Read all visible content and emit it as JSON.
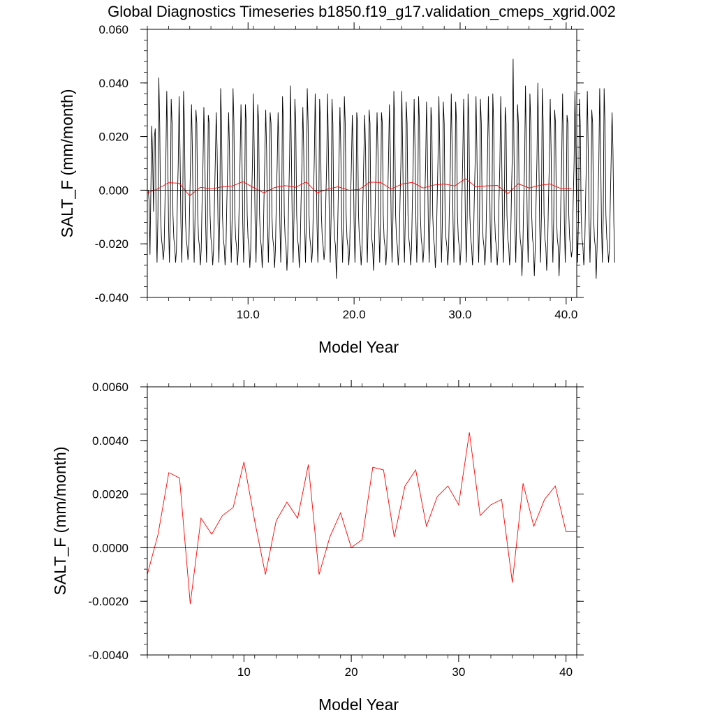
{
  "figure_title": "Global Diagnostics Timeseries b1850.f19_g17.validation_cmeps_xgrid.002",
  "chart_data": [
    {
      "type": "line",
      "title": "",
      "xlabel": "Model Year",
      "ylabel": "SALT_F (mm/month)",
      "xlim": [
        0.5,
        41.0
      ],
      "ylim": [
        -0.04,
        0.06
      ],
      "xticks": [
        10,
        20,
        30,
        40
      ],
      "xtick_labels": [
        "10.0",
        "20.0",
        "30.0",
        "40.0"
      ],
      "yticks": [
        -0.04,
        -0.02,
        0.0,
        0.02,
        0.04,
        0.06
      ],
      "ytick_labels": [
        "-0.040",
        "-0.020",
        "0.000",
        "0.020",
        "0.040",
        "0.060"
      ],
      "zero_line": true,
      "grid": false,
      "series": [
        {
          "color": "#000000",
          "x_start": 0.5,
          "x_step": 0.08333,
          "values": [
            0.0,
            0.0,
            -0.004,
            -0.024,
            0.0,
            0.024,
            0.012,
            -0.008,
            0.02,
            0.023,
            -0.012,
            -0.027,
            -0.01,
            0.042,
            0.025,
            -0.009,
            -0.018,
            -0.021,
            -0.026,
            -0.022,
            -0.004,
            0.012,
            0.037,
            0.015,
            -0.012,
            -0.027,
            -0.01,
            0.034,
            0.025,
            -0.009,
            -0.018,
            -0.021,
            -0.027,
            -0.022,
            -0.004,
            0.01,
            0.035,
            0.015,
            -0.012,
            -0.027,
            -0.01,
            0.037,
            0.025,
            -0.009,
            -0.018,
            -0.021,
            -0.026,
            -0.022,
            -0.004,
            0.012,
            0.032,
            0.015,
            -0.012,
            -0.027,
            -0.01,
            0.03,
            0.025,
            -0.009,
            -0.018,
            -0.021,
            -0.028,
            -0.022,
            -0.004,
            0.01,
            0.031,
            0.015,
            -0.012,
            -0.027,
            -0.01,
            0.028,
            0.025,
            -0.009,
            -0.018,
            -0.021,
            -0.028,
            -0.022,
            -0.004,
            0.012,
            0.029,
            0.015,
            -0.012,
            -0.027,
            -0.01,
            0.038,
            0.025,
            -0.009,
            -0.018,
            -0.021,
            -0.028,
            -0.022,
            -0.004,
            0.01,
            0.029,
            0.015,
            -0.012,
            -0.027,
            -0.01,
            0.038,
            0.025,
            -0.009,
            -0.018,
            -0.021,
            -0.028,
            -0.022,
            -0.004,
            0.012,
            0.032,
            0.015,
            -0.012,
            -0.027,
            -0.01,
            0.032,
            0.025,
            -0.009,
            -0.018,
            -0.021,
            -0.029,
            -0.022,
            -0.004,
            0.01,
            0.036,
            0.015,
            -0.012,
            -0.027,
            -0.01,
            0.032,
            0.025,
            -0.009,
            -0.018,
            -0.021,
            -0.029,
            -0.022,
            -0.004,
            0.012,
            0.03,
            0.015,
            -0.012,
            -0.027,
            -0.01,
            0.029,
            0.025,
            -0.009,
            -0.018,
            -0.021,
            -0.029,
            -0.022,
            -0.004,
            0.01,
            0.029,
            0.015,
            -0.012,
            -0.027,
            -0.01,
            0.035,
            0.025,
            -0.009,
            -0.018,
            -0.021,
            -0.03,
            -0.022,
            -0.004,
            0.012,
            0.039,
            0.015,
            -0.012,
            -0.027,
            -0.01,
            0.034,
            0.025,
            -0.009,
            -0.018,
            -0.021,
            -0.029,
            -0.022,
            -0.004,
            0.01,
            0.031,
            0.015,
            -0.012,
            -0.027,
            -0.01,
            0.038,
            0.025,
            -0.009,
            -0.018,
            -0.021,
            -0.027,
            -0.022,
            -0.004,
            0.012,
            0.036,
            0.015,
            -0.012,
            -0.027,
            -0.01,
            0.034,
            0.025,
            -0.009,
            -0.018,
            -0.021,
            -0.026,
            -0.022,
            -0.004,
            0.01,
            0.036,
            0.015,
            -0.012,
            -0.027,
            -0.01,
            0.034,
            0.025,
            -0.009,
            -0.018,
            -0.021,
            -0.033,
            -0.022,
            -0.004,
            0.012,
            0.031,
            0.015,
            -0.012,
            -0.027,
            -0.01,
            0.035,
            0.025,
            -0.009,
            -0.018,
            -0.021,
            -0.028,
            -0.022,
            -0.004,
            0.01,
            0.028,
            0.015,
            -0.012,
            -0.027,
            -0.01,
            0.029,
            0.025,
            -0.009,
            -0.018,
            -0.021,
            -0.028,
            -0.022,
            -0.004,
            0.012,
            0.028,
            0.015,
            -0.012,
            -0.027,
            -0.01,
            0.03,
            0.025,
            -0.009,
            -0.018,
            -0.021,
            -0.03,
            -0.022,
            -0.004,
            0.01,
            0.029,
            0.015,
            -0.012,
            -0.027,
            -0.01,
            0.029,
            0.025,
            -0.009,
            -0.018,
            -0.021,
            -0.028,
            -0.022,
            -0.004,
            0.012,
            0.032,
            0.015,
            -0.012,
            -0.027,
            -0.01,
            0.037,
            0.025,
            -0.009,
            -0.018,
            -0.021,
            -0.028,
            -0.022,
            -0.004,
            0.01,
            0.037,
            0.015,
            -0.012,
            -0.027,
            -0.01,
            0.033,
            0.025,
            -0.009,
            -0.018,
            -0.021,
            -0.028,
            -0.022,
            -0.004,
            0.012,
            0.034,
            0.015,
            -0.012,
            -0.027,
            -0.01,
            0.035,
            0.025,
            -0.009,
            -0.018,
            -0.021,
            -0.027,
            -0.022,
            -0.004,
            0.01,
            0.033,
            0.015,
            -0.012,
            -0.027,
            -0.01,
            0.031,
            0.025,
            -0.009,
            -0.018,
            -0.021,
            -0.029,
            -0.022,
            -0.004,
            0.012,
            0.035,
            0.015,
            -0.012,
            -0.027,
            -0.01,
            0.033,
            0.025,
            -0.009,
            -0.018,
            -0.021,
            -0.028,
            -0.022,
            -0.004,
            0.01,
            0.036,
            0.015,
            -0.012,
            -0.027,
            -0.01,
            0.033,
            0.025,
            -0.009,
            -0.018,
            -0.021,
            -0.028,
            -0.022,
            -0.004,
            0.012,
            0.034,
            0.015,
            -0.012,
            -0.027,
            -0.01,
            0.036,
            0.025,
            -0.009,
            -0.018,
            -0.021,
            -0.028,
            -0.022,
            -0.004,
            0.01,
            0.035,
            0.015,
            -0.012,
            -0.027,
            -0.01,
            0.034,
            0.025,
            -0.009,
            -0.018,
            -0.021,
            -0.028,
            -0.022,
            -0.004,
            0.012,
            0.035,
            0.015,
            -0.012,
            -0.027,
            -0.01,
            0.036,
            0.025,
            -0.009,
            -0.018,
            -0.021,
            -0.028,
            -0.022,
            -0.004,
            0.01,
            0.035,
            0.015,
            -0.012,
            -0.027,
            -0.01,
            0.031,
            0.025,
            -0.009,
            -0.018,
            -0.021,
            -0.028,
            -0.022,
            -0.004,
            0.012,
            0.049,
            0.015,
            -0.012,
            -0.027,
            -0.01,
            0.032,
            0.025,
            -0.009,
            -0.018,
            -0.021,
            -0.032,
            -0.022,
            -0.004,
            0.01,
            0.039,
            0.015,
            -0.012,
            -0.027,
            -0.01,
            0.036,
            0.025,
            -0.009,
            -0.018,
            -0.021,
            -0.032,
            -0.022,
            -0.004,
            0.012,
            0.04,
            0.015,
            -0.012,
            -0.027,
            -0.01,
            0.038,
            0.025,
            -0.009,
            -0.018,
            -0.021,
            -0.03,
            -0.022,
            -0.004,
            0.01,
            0.034,
            0.015,
            -0.012,
            -0.027,
            -0.01,
            0.03,
            0.025,
            -0.009,
            -0.018,
            -0.021,
            -0.032,
            -0.022,
            -0.004,
            0.012,
            0.036,
            0.015,
            -0.012,
            -0.027,
            -0.01,
            0.028,
            0.025,
            -0.009,
            -0.018,
            -0.021,
            -0.025,
            -0.022,
            -0.004,
            0.01,
            0.037,
            0.015,
            -0.012,
            -0.027,
            -0.01,
            0.034,
            0.025,
            -0.009,
            -0.018,
            -0.021,
            -0.028,
            -0.022,
            -0.004,
            0.012,
            0.037,
            0.015,
            -0.012,
            -0.027,
            -0.01,
            0.03,
            0.025,
            -0.009,
            -0.018,
            -0.021,
            -0.033,
            -0.022,
            -0.004,
            0.01,
            0.038,
            0.015,
            -0.012,
            -0.027,
            -0.01,
            0.038,
            0.025,
            -0.009,
            -0.018,
            -0.021,
            -0.027,
            -0.022,
            -0.004,
            0.012,
            0.029,
            0.015,
            -0.012,
            -0.027
          ]
        },
        {
          "color": "#ff0000",
          "x": [
            0.5,
            1.5,
            2.5,
            3.5,
            4.5,
            5.5,
            6.5,
            7.5,
            8.5,
            9.5,
            10.5,
            11.5,
            12.5,
            13.5,
            14.5,
            15.5,
            16.5,
            17.5,
            18.5,
            19.5,
            20.5,
            21.5,
            22.5,
            23.5,
            24.5,
            25.5,
            26.5,
            27.5,
            28.5,
            29.5,
            30.5,
            31.5,
            32.5,
            33.5,
            34.5,
            35.5,
            36.5,
            37.5,
            38.5,
            39.5,
            40.5
          ],
          "values": [
            -0.001,
            0.0005,
            0.0028,
            0.0026,
            -0.0021,
            0.0011,
            0.0005,
            0.0012,
            0.0015,
            0.0032,
            0.001,
            -0.001,
            0.001,
            0.0017,
            0.0011,
            0.0031,
            -0.001,
            0.0004,
            0.0013,
            0.0,
            0.0003,
            0.003,
            0.0029,
            0.0004,
            0.0023,
            0.0029,
            0.0008,
            0.0019,
            0.0023,
            0.0016,
            0.0043,
            0.0012,
            0.0016,
            0.0018,
            -0.0013,
            0.0024,
            0.0008,
            0.0018,
            0.0023,
            0.0006,
            0.0006
          ]
        }
      ]
    },
    {
      "type": "line",
      "title": "",
      "xlabel": "Model Year",
      "ylabel": "SALT_F (mm/month)",
      "xlim": [
        1.0,
        41.0
      ],
      "ylim": [
        -0.004,
        0.006
      ],
      "xticks": [
        10,
        20,
        30,
        40
      ],
      "xtick_labels": [
        "10",
        "20",
        "30",
        "40"
      ],
      "yticks": [
        -0.004,
        -0.002,
        0.0,
        0.002,
        0.004,
        0.006
      ],
      "ytick_labels": [
        "-0.0040",
        "-0.0020",
        "0.0000",
        "0.0020",
        "0.0040",
        "0.0060"
      ],
      "zero_line": true,
      "grid": false,
      "series": [
        {
          "color": "#ff0000",
          "x": [
            1.0,
            2.0,
            3.0,
            4.0,
            5.0,
            6.0,
            7.0,
            8.0,
            9.0,
            10.0,
            11.0,
            12.0,
            13.0,
            14.0,
            15.0,
            16.0,
            17.0,
            18.0,
            19.0,
            20.0,
            21.0,
            22.0,
            23.0,
            24.0,
            25.0,
            26.0,
            27.0,
            28.0,
            29.0,
            30.0,
            31.0,
            32.0,
            33.0,
            34.0,
            35.0,
            36.0,
            37.0,
            38.0,
            39.0,
            40.0,
            41.0
          ],
          "values": [
            -0.001,
            0.0005,
            0.0028,
            0.0026,
            -0.0021,
            0.0011,
            0.0005,
            0.0012,
            0.0015,
            0.0032,
            0.001,
            -0.001,
            0.001,
            0.0017,
            0.0011,
            0.0031,
            -0.001,
            0.0004,
            0.0013,
            0.0,
            0.0003,
            0.003,
            0.0029,
            0.0004,
            0.0023,
            0.0029,
            0.0008,
            0.0019,
            0.0023,
            0.0016,
            0.0043,
            0.0012,
            0.0016,
            0.0018,
            -0.0013,
            0.0024,
            0.0008,
            0.0018,
            0.0023,
            0.0006,
            0.0006
          ]
        }
      ]
    }
  ]
}
